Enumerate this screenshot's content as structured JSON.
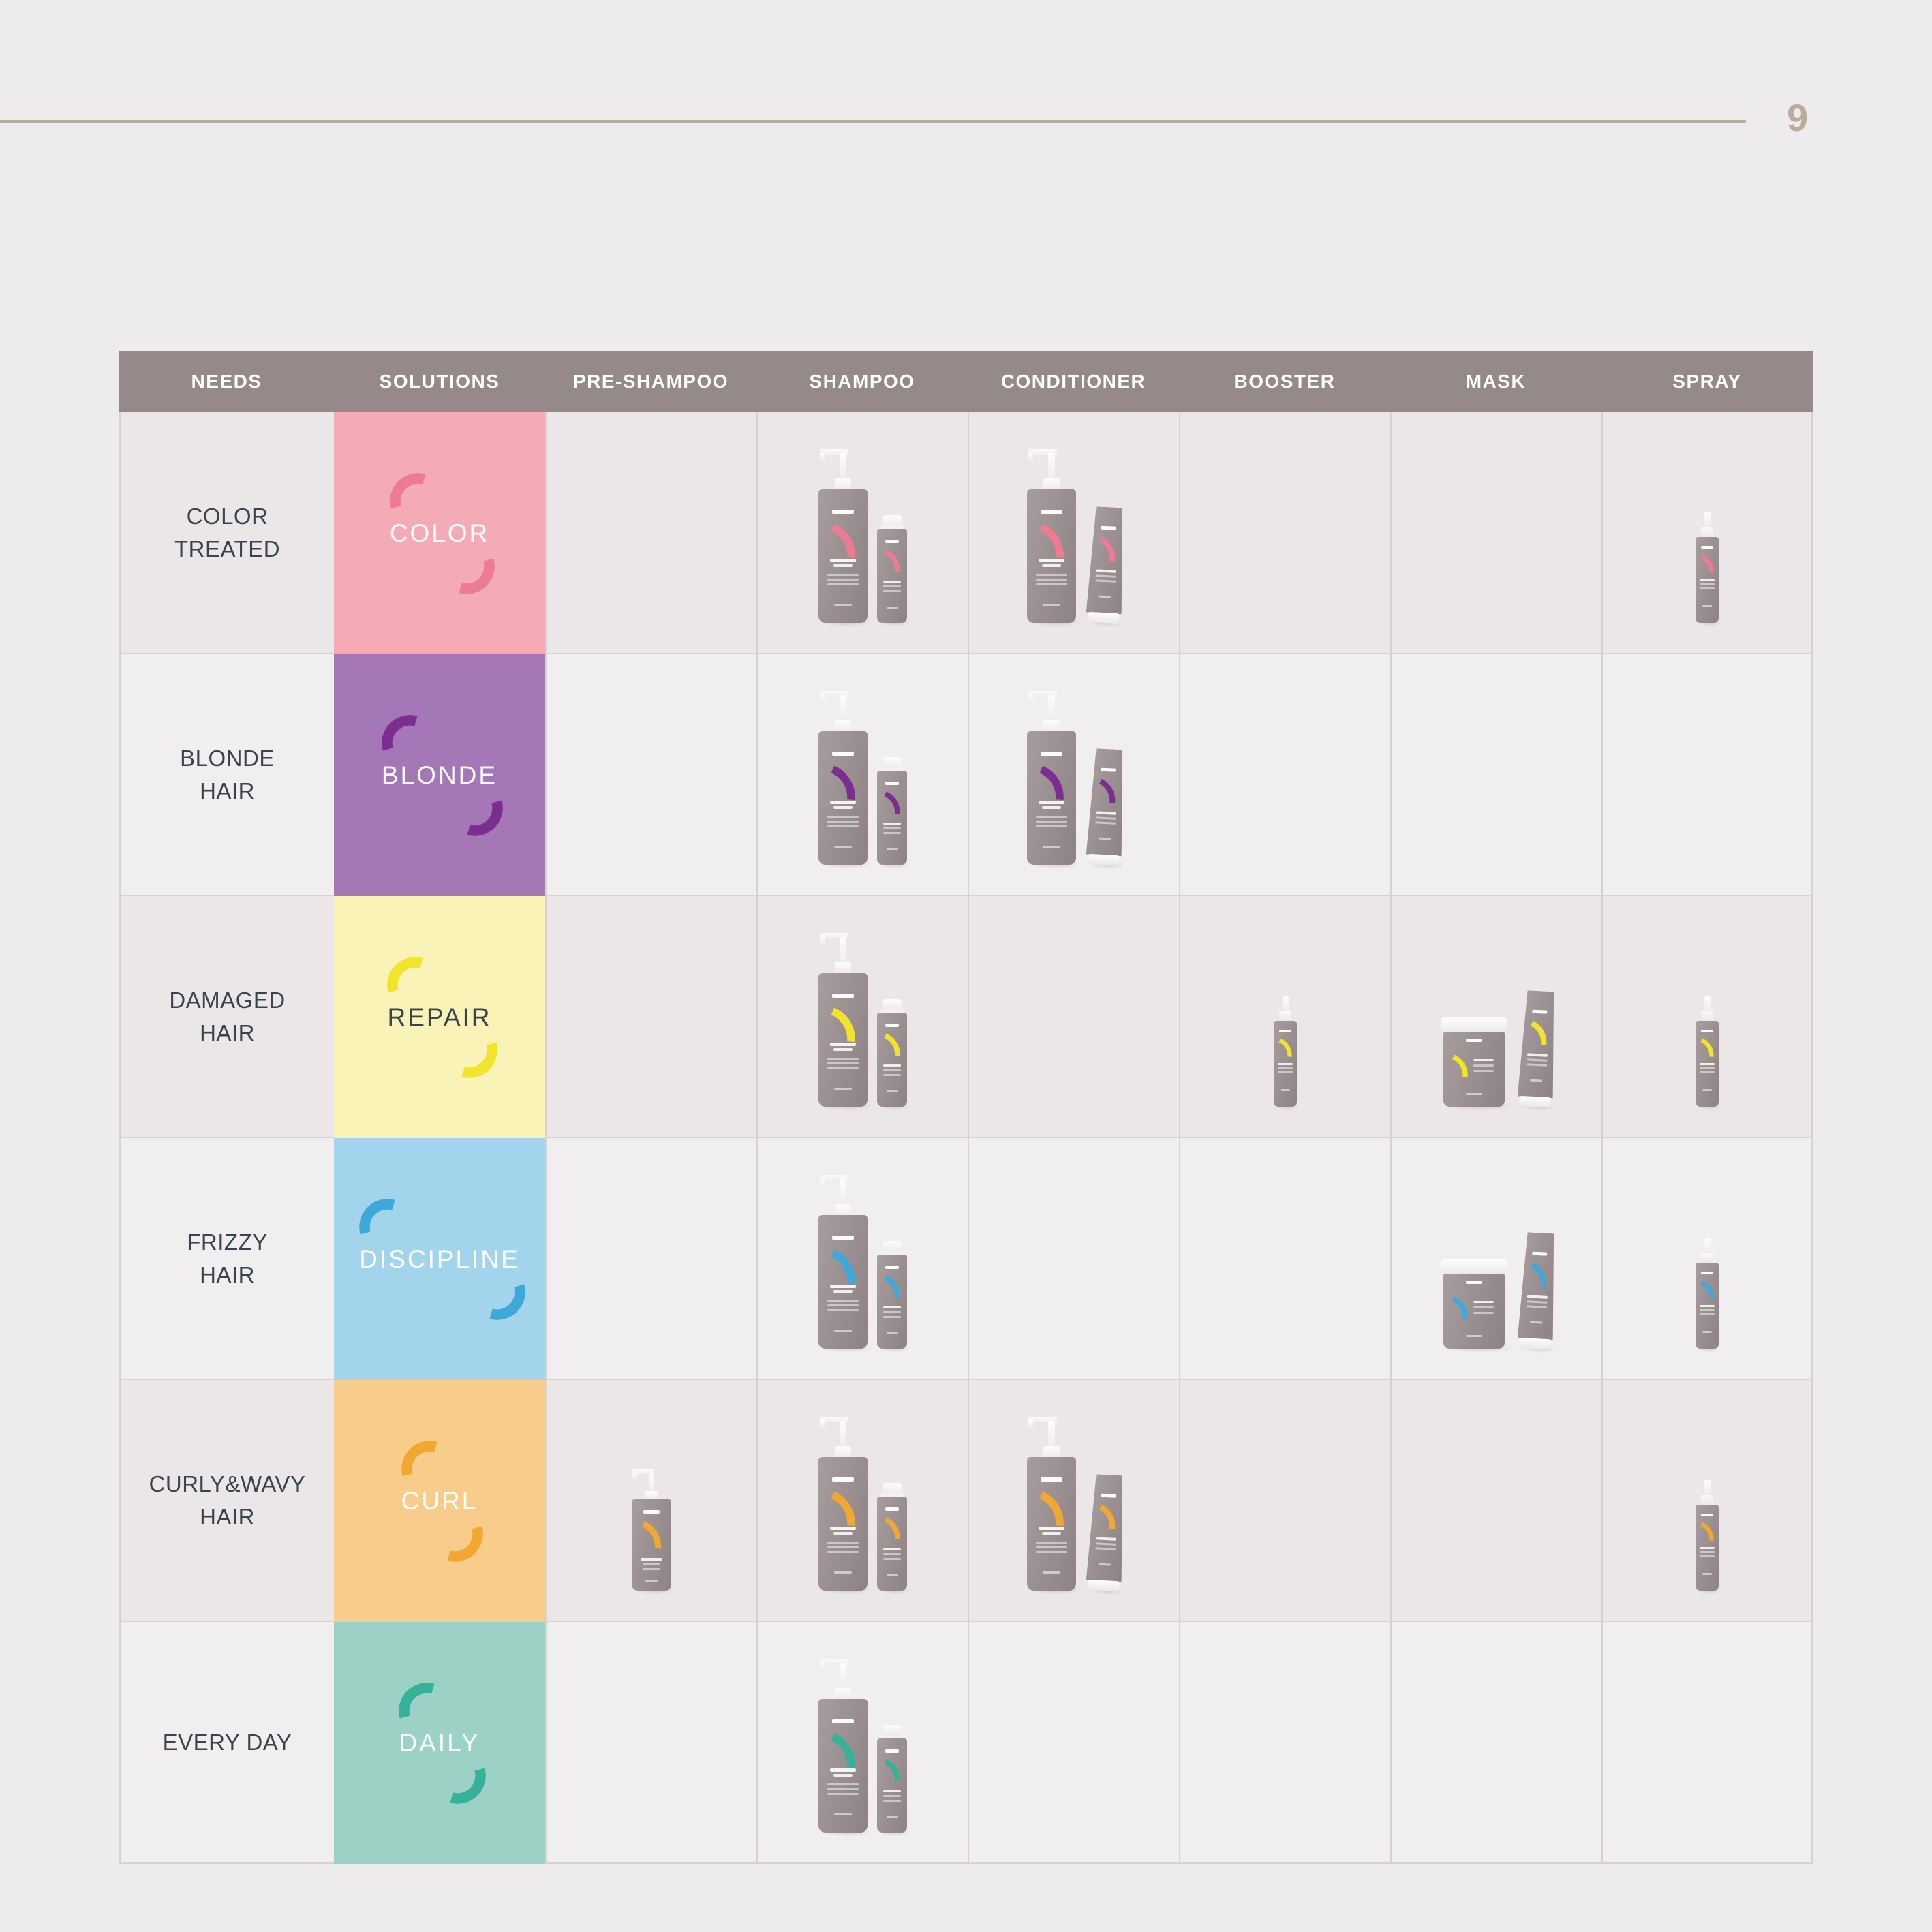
{
  "page": {
    "number": "9"
  },
  "colors": {
    "page_bg": "#eeebec",
    "rule": "#b9ac9c",
    "header_bg": "#95898a",
    "needs_text": "#3a444e",
    "row_dark": "#ebe7e8",
    "row_light": "#f0eeef",
    "grid_line": "#d6d1d3"
  },
  "table": {
    "headers": [
      "NEEDS",
      "SOLUTIONS",
      "PRE-SHAMPOO",
      "SHAMPOO",
      "CONDITIONER",
      "BOOSTER",
      "MASK",
      "SPRAY"
    ],
    "rows": [
      {
        "need": "COLOR\nTREATED",
        "solution": "COLOR",
        "swatch_bg": "#f5abb6",
        "arc_color": "#ec7b93",
        "solution_text_color": "#ffffff",
        "products": {
          "pre_shampoo": [],
          "shampoo": [
            "pump-large",
            "bottle-small"
          ],
          "conditioner": [
            "pump-large",
            "tube"
          ],
          "booster": [],
          "mask": [],
          "spray": [
            "spray"
          ]
        }
      },
      {
        "need": "BLONDE\nHAIR",
        "solution": "BLONDE",
        "swatch_bg": "#a478b7",
        "arc_color": "#7c2e90",
        "solution_text_color": "#ffffff",
        "products": {
          "pre_shampoo": [],
          "shampoo": [
            "pump-large",
            "bottle-small"
          ],
          "conditioner": [
            "pump-large",
            "tube"
          ],
          "booster": [],
          "mask": [],
          "spray": []
        }
      },
      {
        "need": "DAMAGED\nHAIR",
        "solution": "REPAIR",
        "swatch_bg": "#faf3b8",
        "arc_color": "#f2e32b",
        "solution_text_color": "#3a444e",
        "products": {
          "pre_shampoo": [],
          "shampoo": [
            "pump-large",
            "bottle-small"
          ],
          "conditioner": [],
          "booster": [
            "spray"
          ],
          "mask": [
            "jar",
            "tube"
          ],
          "spray": [
            "spray"
          ]
        }
      },
      {
        "need": "FRIZZY\nHAIR",
        "solution": "DISCIPLINE",
        "swatch_bg": "#a2d4ec",
        "arc_color": "#3fa8da",
        "solution_text_color": "#ffffff",
        "products": {
          "pre_shampoo": [],
          "shampoo": [
            "pump-large",
            "bottle-small"
          ],
          "conditioner": [],
          "booster": [],
          "mask": [
            "jar",
            "tube"
          ],
          "spray": [
            "spray"
          ]
        }
      },
      {
        "need": "CURLY&WAVY\nHAIR",
        "solution": "CURL",
        "swatch_bg": "#f8cd8b",
        "arc_color": "#f0a833",
        "solution_text_color": "#ffffff",
        "products": {
          "pre_shampoo": [
            "pump-medium"
          ],
          "shampoo": [
            "pump-large",
            "bottle-small"
          ],
          "conditioner": [
            "pump-large",
            "tube"
          ],
          "booster": [],
          "mask": [],
          "spray": [
            "spray"
          ]
        }
      },
      {
        "need": "EVERY DAY",
        "solution": "DAILY",
        "swatch_bg": "#9bd2c5",
        "arc_color": "#36b29b",
        "solution_text_color": "#ffffff",
        "products": {
          "pre_shampoo": [],
          "shampoo": [
            "pump-large",
            "bottle-small"
          ],
          "conditioner": [],
          "booster": [],
          "mask": [],
          "spray": []
        }
      }
    ]
  }
}
